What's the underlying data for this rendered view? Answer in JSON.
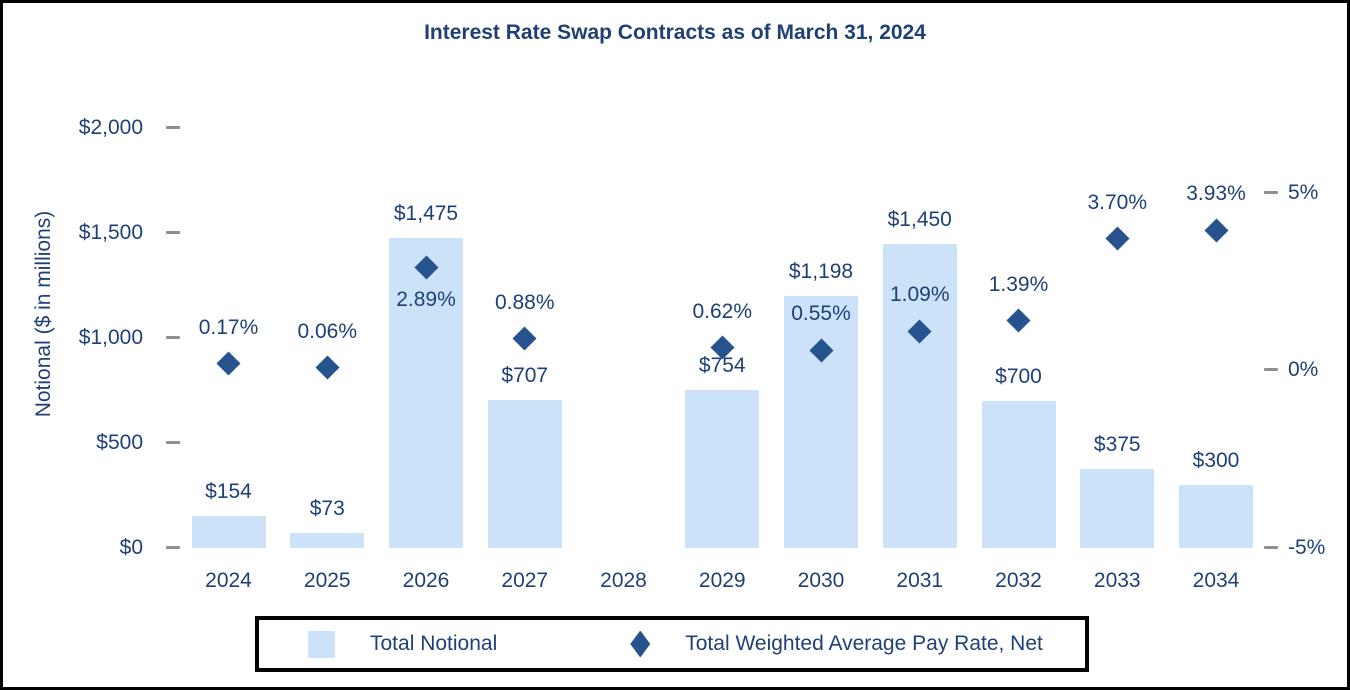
{
  "title": "Interest Rate Swap Contracts as of March 31, 2024",
  "colors": {
    "text_navy": "#1F4077",
    "marker_navy": "#26538E",
    "bar_fill": "#CCE2F8",
    "tick_gray": "#8F8F8F",
    "border_black": "#000000"
  },
  "chart_data": {
    "type": "bar",
    "subtype": "combo-bar-scatter-dual-axis",
    "title": "Interest Rate Swap Contracts as of March 31, 2024",
    "categories": [
      "2024",
      "2025",
      "2026",
      "2027",
      "2028",
      "2029",
      "2030",
      "2031",
      "2032",
      "2033",
      "2034"
    ],
    "series": [
      {
        "name": "Total Notional",
        "type": "bar",
        "axis": "left",
        "values": [
          154,
          73,
          1475,
          707,
          null,
          754,
          1198,
          1450,
          700,
          375,
          300
        ],
        "labels": [
          "$154",
          "$73",
          "$1,475",
          "$707",
          null,
          "$754",
          "$1,198",
          "$1,450",
          "$700",
          "$375",
          "$300"
        ]
      },
      {
        "name": "Total Weighted Average Pay Rate, Net",
        "type": "scatter",
        "axis": "right",
        "values": [
          0.17,
          0.06,
          2.89,
          0.88,
          null,
          0.62,
          0.55,
          1.09,
          1.39,
          3.7,
          3.93
        ],
        "labels": [
          "0.17%",
          "0.06%",
          "2.89%",
          "0.88%",
          null,
          "0.62%",
          "0.55%",
          "1.09%",
          "1.39%",
          "3.70%",
          "3.93%"
        ],
        "label_positions": [
          "above",
          "above",
          "below",
          "above",
          null,
          "above",
          "above",
          "above",
          "above",
          "above",
          "above"
        ]
      }
    ],
    "left_axis": {
      "label": "Notional ($ in millions)",
      "tick_labels": [
        "$2,000",
        "$1,500",
        "$1,000",
        "$500",
        "$0"
      ],
      "tick_values": [
        2000,
        1500,
        1000,
        500,
        0
      ],
      "range": [
        0,
        2000
      ]
    },
    "right_axis": {
      "label": "",
      "tick_labels": [
        "5%",
        "0%",
        "-5%"
      ],
      "tick_values": [
        5,
        0,
        -5
      ],
      "range": [
        -5,
        5
      ]
    },
    "legend": {
      "position": "bottom",
      "items": [
        {
          "label": "Total Notional",
          "marker": "square"
        },
        {
          "label": "Total Weighted Average Pay Rate, Net",
          "marker": "diamond"
        }
      ]
    },
    "grid": false
  }
}
